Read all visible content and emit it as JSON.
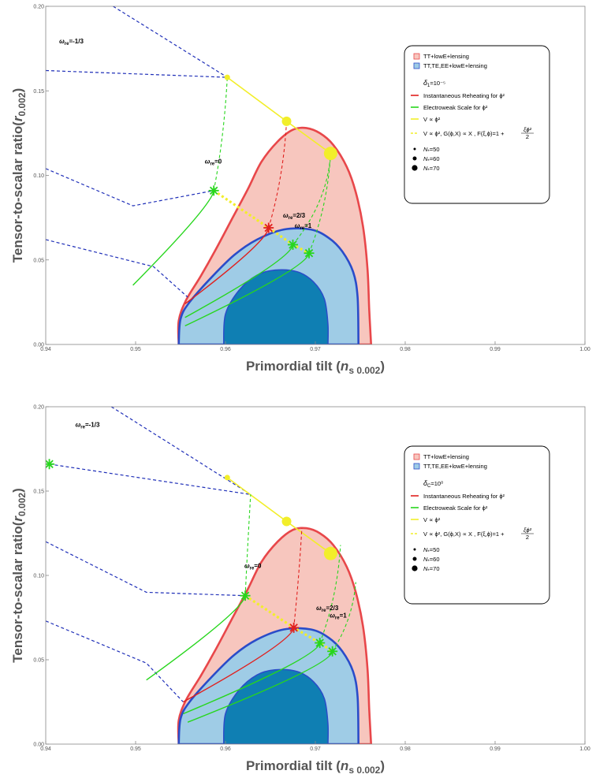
{
  "chart_data": [
    {
      "type": "scatter",
      "title": "",
      "xlabel": "Primordial tilt (",
      "xlabel_sym": "n",
      "xlabel_sub": "s 0.002",
      "xlabel_close": ")",
      "ylabel": "Tensor-to-scalar ratio(",
      "ylabel_sym": "r",
      "ylabel_sub": "0.002",
      "ylabel_close": ")",
      "xlim": [
        0.94,
        1.0
      ],
      "ylim": [
        0.0,
        0.2
      ],
      "xticks": [
        "0.94",
        "0.95",
        "0.96",
        "0.97",
        "0.98",
        "0.99",
        "1.00"
      ],
      "yticks": [
        "0.00",
        "0.05",
        "0.10",
        "0.15",
        "0.20"
      ],
      "legend": {
        "placement": "top-right",
        "entries": [
          "TT+lowE+lensing",
          "TT,TE,EE+lowE+lensing",
          "δ",
          "Instantaneous Reheating for ϕ²",
          "Electroweak Scale for ϕ²",
          "V ∝ ϕ²",
          "V ∝ ϕ², G(ϕ,X) ∝ X , F(ξ,ϕ)=1 + ",
          "N",
          "N",
          "N"
        ],
        "delta_sub": "1",
        "delta_sup": "=10⁻⁵",
        "frac_num": "ξϕ²",
        "frac_den": "2",
        "n_sub": "*",
        "n_vals": [
          "=50",
          "=60",
          "=70"
        ]
      },
      "annotations": [
        {
          "text": "ω",
          "sub": "re",
          "rest": "=-1/3",
          "x": 0.9415,
          "y": 0.178
        },
        {
          "text": "ω",
          "sub": "re",
          "rest": "=0",
          "x": 0.9577,
          "y": 0.107
        },
        {
          "text": "ω",
          "sub": "re",
          "rest": "=2/3",
          "x": 0.9664,
          "y": 0.075
        },
        {
          "text": "ω",
          "sub": "re",
          "rest": "=1",
          "x": 0.9677,
          "y": 0.069
        }
      ],
      "contours": {
        "outer_68": [
          [
            0.9548,
            0.0
          ],
          [
            0.9548,
            0.014
          ],
          [
            0.9556,
            0.026
          ],
          [
            0.9572,
            0.04
          ],
          [
            0.9588,
            0.055
          ],
          [
            0.9608,
            0.075
          ],
          [
            0.9625,
            0.092
          ],
          [
            0.964,
            0.108
          ],
          [
            0.9658,
            0.12
          ],
          [
            0.9675,
            0.127
          ],
          [
            0.969,
            0.128
          ],
          [
            0.9705,
            0.125
          ],
          [
            0.972,
            0.118
          ],
          [
            0.9735,
            0.105
          ],
          [
            0.9745,
            0.09
          ],
          [
            0.9753,
            0.07
          ],
          [
            0.9758,
            0.045
          ],
          [
            0.976,
            0.02
          ],
          [
            0.9762,
            0.0
          ]
        ],
        "inner_95": [
          [
            0.9548,
            0.0
          ],
          [
            0.955,
            0.015
          ],
          [
            0.956,
            0.025
          ],
          [
            0.9585,
            0.04
          ],
          [
            0.961,
            0.053
          ],
          [
            0.9635,
            0.062
          ],
          [
            0.9665,
            0.068
          ],
          [
            0.9695,
            0.068
          ],
          [
            0.9715,
            0.063
          ],
          [
            0.973,
            0.055
          ],
          [
            0.9742,
            0.043
          ],
          [
            0.9747,
            0.028
          ],
          [
            0.9748,
            0.0
          ]
        ],
        "core": [
          [
            0.9598,
            0.0
          ],
          [
            0.96,
            0.018
          ],
          [
            0.9615,
            0.032
          ],
          [
            0.9635,
            0.041
          ],
          [
            0.9655,
            0.044
          ],
          [
            0.968,
            0.043
          ],
          [
            0.9698,
            0.037
          ],
          [
            0.971,
            0.027
          ],
          [
            0.9714,
            0.012
          ],
          [
            0.9714,
            0.0
          ]
        ]
      },
      "series": [
        {
          "name": "V ∝ ϕ²",
          "style": "yellow-solid",
          "x": [
            0.9602,
            0.9668,
            0.9717
          ],
          "y": [
            0.158,
            0.132,
            0.113
          ]
        },
        {
          "name": "V ∝ ϕ², G(ϕ,X) ∝ X , F(ξ,ϕ)=1 + ξϕ²/2",
          "style": "yellow-dashed",
          "x": [
            0.9587,
            0.9648,
            0.9675,
            0.9693
          ],
          "y": [
            0.091,
            0.069,
            0.059,
            0.054
          ]
        },
        {
          "name": "Instantaneous Reheating for ϕ²",
          "style": "red",
          "x": [
            0.9555,
            0.9648,
            0.9668
          ],
          "y": [
            0.024,
            0.069,
            0.132
          ]
        },
        {
          "name": "Electroweak Scale for ϕ²",
          "style": "green",
          "x": [
            0.9497,
            0.9587,
            0.9602
          ],
          "y": [
            0.035,
            0.091,
            0.158
          ]
        },
        {
          "name": "Electroweak Scale for ϕ²",
          "style": "green",
          "x": [
            0.9555,
            0.9675,
            0.9717
          ],
          "y": [
            0.016,
            0.059,
            0.113
          ]
        },
        {
          "name": "Electroweak Scale for ϕ²",
          "style": "green",
          "x": [
            0.9555,
            0.9693,
            0.9717
          ],
          "y": [
            0.011,
            0.054,
            0.113
          ]
        }
      ],
      "dashed_blue": [
        [
          [
            0.94,
            0.062
          ],
          [
            0.952,
            0.046
          ],
          [
            0.9558,
            0.028
          ]
        ],
        [
          [
            0.94,
            0.104
          ],
          [
            0.9497,
            0.082
          ],
          [
            0.9587,
            0.091
          ]
        ],
        [
          [
            0.94,
            0.162
          ],
          [
            0.9602,
            0.158
          ]
        ],
        [
          [
            0.9475,
            0.2
          ],
          [
            0.9602,
            0.158
          ]
        ]
      ],
      "stars": [
        {
          "x": 0.9587,
          "y": 0.091,
          "color": "green"
        },
        {
          "x": 0.9648,
          "y": 0.069,
          "color": "red"
        },
        {
          "x": 0.9675,
          "y": 0.059,
          "color": "green"
        },
        {
          "x": 0.9693,
          "y": 0.054,
          "color": "green"
        }
      ],
      "dots": [
        {
          "x": 0.9602,
          "y": 0.158,
          "size": "small"
        },
        {
          "x": 0.9668,
          "y": 0.132,
          "size": "medium"
        },
        {
          "x": 0.9717,
          "y": 0.113,
          "size": "large"
        }
      ]
    },
    {
      "type": "scatter",
      "title": "",
      "xlabel": "Primordial tilt (",
      "xlabel_sym": "n",
      "xlabel_sub": "s 0.002",
      "xlabel_close": ")",
      "ylabel": "Tensor-to-scalar ratio(",
      "ylabel_sym": "r",
      "ylabel_sub": "0.002",
      "ylabel_close": ")",
      "xlim": [
        0.94,
        1.0
      ],
      "ylim": [
        0.0,
        0.2
      ],
      "xticks": [
        "0.94",
        "0.95",
        "0.96",
        "0.97",
        "0.98",
        "0.99",
        "1.00"
      ],
      "yticks": [
        "0.00",
        "0.05",
        "0.10",
        "0.15",
        "0.20"
      ],
      "legend": {
        "placement": "top-right",
        "entries": [
          "TT+lowE+lensing",
          "TT,TE,EE+lowE+lensing",
          "δ",
          "Instantaneous Reheating for ϕ²",
          "Electroweak Scale for ϕ²",
          "V ∝ ϕ²",
          "V ∝ ϕ², G(ϕ,X) ∝ X , F(ξ,ϕ)=1 + ",
          "N",
          "N",
          "N"
        ],
        "delta_sub": "C",
        "delta_sup": "=10⁰",
        "frac_num": "ξϕ²",
        "frac_den": "2",
        "n_sub": "*",
        "n_vals": [
          "=50",
          "=60",
          "=70"
        ]
      },
      "annotations": [
        {
          "text": "ω",
          "sub": "re",
          "rest": "=-1/3",
          "x": 0.9433,
          "y": 0.188
        },
        {
          "text": "ω",
          "sub": "re",
          "rest": "=0",
          "x": 0.9621,
          "y": 0.1045
        },
        {
          "text": "ω",
          "sub": "re",
          "rest": "=2/3",
          "x": 0.9701,
          "y": 0.0795
        },
        {
          "text": "ω",
          "sub": "re",
          "rest": "=1",
          "x": 0.9716,
          "y": 0.075
        }
      ],
      "contours": {
        "outer_68": [
          [
            0.9548,
            0.0
          ],
          [
            0.9548,
            0.014
          ],
          [
            0.9556,
            0.026
          ],
          [
            0.9572,
            0.04
          ],
          [
            0.9588,
            0.055
          ],
          [
            0.9608,
            0.075
          ],
          [
            0.9625,
            0.092
          ],
          [
            0.964,
            0.108
          ],
          [
            0.9658,
            0.12
          ],
          [
            0.9675,
            0.127
          ],
          [
            0.969,
            0.128
          ],
          [
            0.9705,
            0.125
          ],
          [
            0.972,
            0.118
          ],
          [
            0.9735,
            0.105
          ],
          [
            0.9745,
            0.09
          ],
          [
            0.9753,
            0.07
          ],
          [
            0.9758,
            0.045
          ],
          [
            0.976,
            0.02
          ],
          [
            0.9762,
            0.0
          ]
        ],
        "inner_95": [
          [
            0.9548,
            0.0
          ],
          [
            0.955,
            0.015
          ],
          [
            0.956,
            0.025
          ],
          [
            0.9585,
            0.04
          ],
          [
            0.961,
            0.053
          ],
          [
            0.9635,
            0.062
          ],
          [
            0.9665,
            0.068
          ],
          [
            0.9695,
            0.068
          ],
          [
            0.9715,
            0.063
          ],
          [
            0.973,
            0.055
          ],
          [
            0.9742,
            0.043
          ],
          [
            0.9747,
            0.028
          ],
          [
            0.9748,
            0.0
          ]
        ],
        "core": [
          [
            0.9598,
            0.0
          ],
          [
            0.96,
            0.018
          ],
          [
            0.9615,
            0.032
          ],
          [
            0.9635,
            0.041
          ],
          [
            0.9655,
            0.044
          ],
          [
            0.968,
            0.043
          ],
          [
            0.9698,
            0.037
          ],
          [
            0.971,
            0.027
          ],
          [
            0.9714,
            0.012
          ],
          [
            0.9714,
            0.0
          ]
        ]
      },
      "series": [
        {
          "name": "V ∝ ϕ²",
          "style": "yellow-solid",
          "x": [
            0.9602,
            0.9668,
            0.9717
          ],
          "y": [
            0.158,
            0.132,
            0.113
          ]
        },
        {
          "name": "V ∝ ϕ², G(ϕ,X) ∝ X , F(ξ,ϕ)=1 + ξϕ²/2",
          "style": "yellow-dashed",
          "x": [
            0.9622,
            0.9676,
            0.9705,
            0.9719
          ],
          "y": [
            0.088,
            0.069,
            0.06,
            0.055
          ]
        },
        {
          "name": "Instantaneous Reheating for ϕ²",
          "style": "red",
          "x": [
            0.9553,
            0.9676,
            0.9685
          ],
          "y": [
            0.025,
            0.069,
            0.128
          ]
        },
        {
          "name": "Electroweak Scale for ϕ²",
          "style": "green",
          "x": [
            0.9512,
            0.9622,
            0.9628
          ],
          "y": [
            0.038,
            0.088,
            0.148
          ]
        },
        {
          "name": "Electroweak Scale for ϕ²",
          "style": "green",
          "x": [
            0.9553,
            0.9705,
            0.9728
          ],
          "y": [
            0.018,
            0.06,
            0.118
          ]
        },
        {
          "name": "Electroweak Scale for ϕ²",
          "style": "green",
          "x": [
            0.9558,
            0.9719,
            0.9745
          ],
          "y": [
            0.013,
            0.055,
            0.096
          ]
        }
      ],
      "dashed_blue": [
        [
          [
            0.94,
            0.073
          ],
          [
            0.9512,
            0.048
          ],
          [
            0.9553,
            0.025
          ]
        ],
        [
          [
            0.94,
            0.12
          ],
          [
            0.9512,
            0.09
          ],
          [
            0.9622,
            0.088
          ]
        ],
        [
          [
            0.9404,
            0.166
          ],
          [
            0.9628,
            0.148
          ]
        ],
        [
          [
            0.9473,
            0.2
          ],
          [
            0.9628,
            0.148
          ]
        ]
      ],
      "stars": [
        {
          "x": 0.9404,
          "y": 0.166,
          "color": "green"
        },
        {
          "x": 0.9622,
          "y": 0.088,
          "color": "green"
        },
        {
          "x": 0.9676,
          "y": 0.069,
          "color": "red"
        },
        {
          "x": 0.9705,
          "y": 0.06,
          "color": "green"
        },
        {
          "x": 0.9719,
          "y": 0.055,
          "color": "green"
        }
      ],
      "dots": [
        {
          "x": 0.9602,
          "y": 0.158,
          "size": "small"
        },
        {
          "x": 0.9668,
          "y": 0.132,
          "size": "medium"
        },
        {
          "x": 0.9717,
          "y": 0.113,
          "size": "large"
        }
      ]
    }
  ],
  "colors": {
    "outer_fill": "#f7c6be",
    "outer_stroke": "#e8474a",
    "inner_fill": "#9fcce6",
    "inner_stroke": "#2a4cc9",
    "core_fill": "#0f7fb3",
    "red": "#e0201e",
    "green": "#27d61d",
    "yellow": "#f2ee2a",
    "blue_dashed": "#1f2fb8"
  }
}
